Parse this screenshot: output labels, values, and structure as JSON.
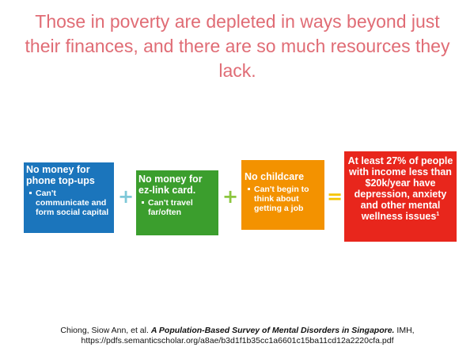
{
  "title": "Those in poverty are depleted in ways beyond just their finances, and there are so much resources they lack.",
  "boxes": {
    "phone": {
      "heading": "No money for phone top-ups",
      "bullet": "Can't communicate and form social capital",
      "color": "#1b75bc"
    },
    "ezlink": {
      "heading": "No money for ez-link card.",
      "bullet": "Can't travel far/often",
      "color": "#3b9e2d"
    },
    "childcare": {
      "heading": "No childcare",
      "bullet": "Can't begin to think about getting a job",
      "color": "#f39200"
    },
    "result": {
      "text": "At least 27% of people with income less than $20k/year have depression, anxiety and other mental wellness issues",
      "superscript": "1",
      "color": "#e8261c"
    }
  },
  "operators": {
    "plus1": "+",
    "plus2": "+",
    "equals": "="
  },
  "citation": {
    "authors": "Chiong, Siow Ann, et al. ",
    "work": "A Population-Based Survey of Mental Disorders in Singapore.",
    "publisher": " IMH,",
    "url": "https://pdfs.semanticscholar.org/a8ae/b3d1f1b35cc1a6601c15ba11cd12a2220cfa.pdf"
  }
}
